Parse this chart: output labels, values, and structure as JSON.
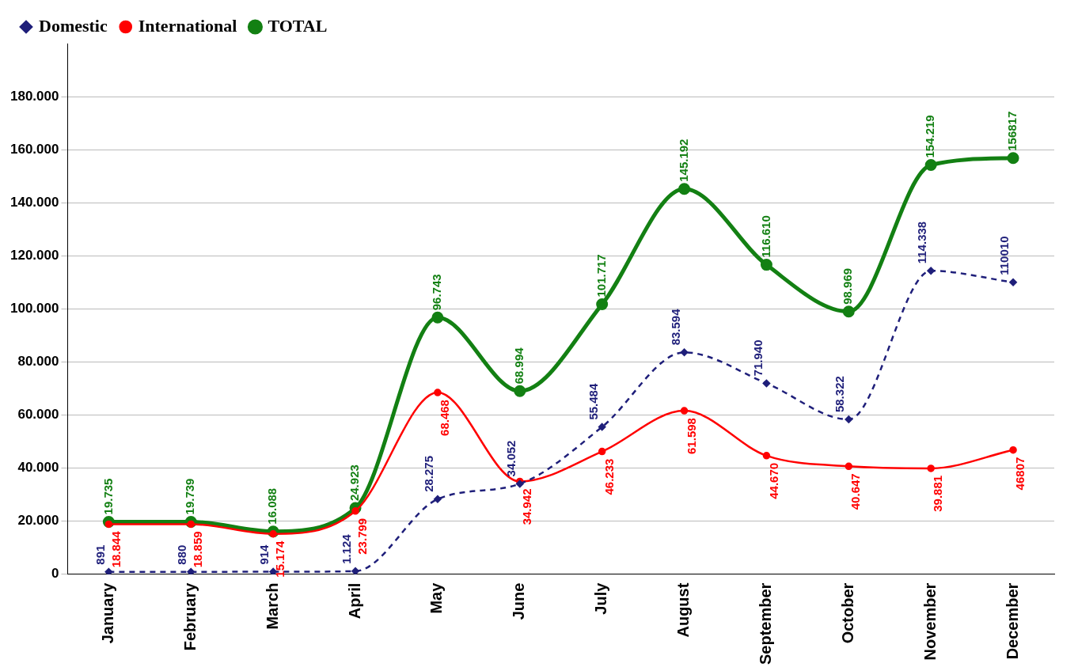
{
  "chart_data": {
    "type": "line",
    "categories": [
      "January",
      "February",
      "March",
      "April",
      "May",
      "June",
      "July",
      "August",
      "September",
      "October",
      "November",
      "December"
    ],
    "series": [
      {
        "name": "Domestic",
        "color": "#1f1f7a",
        "line_style": "dashed",
        "marker": "diamond",
        "values": [
          891,
          880,
          914,
          1124,
          28275,
          34052,
          55484,
          83594,
          71940,
          58322,
          114338,
          110010
        ],
        "value_labels": [
          "891",
          "880",
          "914",
          "1.124",
          "28.275",
          "34.052",
          "55.484",
          "83.594",
          "71.940",
          "58.322",
          "114.338",
          "110010"
        ]
      },
      {
        "name": "International",
        "color": "#ff0000",
        "line_style": "solid",
        "marker": "circle",
        "values": [
          18844,
          18859,
          15174,
          23799,
          68468,
          34942,
          46233,
          61598,
          44670,
          40647,
          39881,
          46807
        ],
        "value_labels": [
          "18.844",
          "18.859",
          "15.174",
          "23.799",
          "68.468",
          "34.942",
          "46.233",
          "61.598",
          "44.670",
          "40.647",
          "39.881",
          "46807"
        ]
      },
      {
        "name": "TOTAL",
        "color": "#138013",
        "line_style": "solid",
        "marker": "circle",
        "values": [
          19735,
          19739,
          16088,
          24923,
          96743,
          68994,
          101717,
          145192,
          116610,
          98969,
          154219,
          156817
        ],
        "value_labels": [
          "19.735",
          "19.739",
          "16.088",
          "24.923",
          "96.743",
          "68.994",
          "101.717",
          "145.192",
          "116.610",
          "98.969",
          "154.219",
          "156817"
        ]
      }
    ],
    "ylim": [
      0,
      200000
    ],
    "yticks": [
      {
        "value": 0,
        "label": "0"
      },
      {
        "value": 20000,
        "label": "20.000"
      },
      {
        "value": 40000,
        "label": "40.000"
      },
      {
        "value": 60000,
        "label": "60.000"
      },
      {
        "value": 80000,
        "label": "80.000"
      },
      {
        "value": 100000,
        "label": "100.000"
      },
      {
        "value": 120000,
        "label": "120.000"
      },
      {
        "value": 140000,
        "label": "140.000"
      },
      {
        "value": 160000,
        "label": "160.000"
      },
      {
        "value": 180000,
        "label": "180.000"
      }
    ],
    "grid": "y",
    "legend": "top left"
  }
}
